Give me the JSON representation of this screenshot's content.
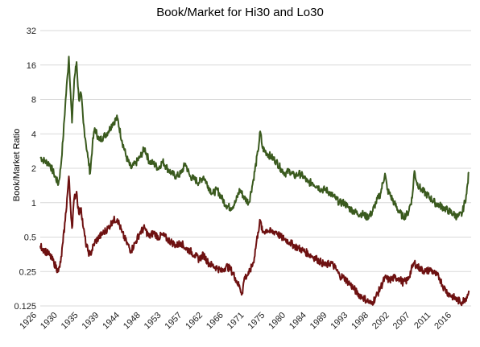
{
  "chart_data": {
    "type": "line",
    "title": "Book/Market for Hi30 and Lo30",
    "xlabel": "",
    "ylabel": "Book/Market Ratio",
    "y_scale": "log2",
    "ylim": [
      0.125,
      32
    ],
    "y_ticks": [
      "32",
      "16",
      "8",
      "4",
      "2",
      "1",
      "0.5",
      "0.25",
      "0.125"
    ],
    "y_tick_values": [
      32,
      16,
      8,
      4,
      2,
      1,
      0.5,
      0.25,
      0.125
    ],
    "x_tick_labels": [
      "1926",
      "1930",
      "1935",
      "1939",
      "1944",
      "1948",
      "1953",
      "1957",
      "1962",
      "1966",
      "1971",
      "1975",
      "1980",
      "1984",
      "1989",
      "1993",
      "1998",
      "2002",
      "2007",
      "2011",
      "2016"
    ],
    "xlim": [
      1926,
      2021
    ],
    "grid": "horizontal",
    "series": [
      {
        "color": "#3a5a1e",
        "points": [
          [
            1926,
            2.5
          ],
          [
            1927,
            2.3
          ],
          [
            1928,
            2.2
          ],
          [
            1929,
            1.8
          ],
          [
            1930,
            1.45
          ],
          [
            1930.5,
            2.0
          ],
          [
            1931,
            3.5
          ],
          [
            1931.5,
            7.0
          ],
          [
            1932,
            13.0
          ],
          [
            1932.3,
            19.0
          ],
          [
            1932.7,
            9.0
          ],
          [
            1933,
            5.0
          ],
          [
            1933.5,
            12.0
          ],
          [
            1934,
            17.0
          ],
          [
            1934.5,
            8.0
          ],
          [
            1935,
            9.0
          ],
          [
            1935.5,
            5.0
          ],
          [
            1936,
            3.5
          ],
          [
            1936.5,
            2.5
          ],
          [
            1937,
            1.8
          ],
          [
            1937.5,
            3.2
          ],
          [
            1938,
            4.5
          ],
          [
            1939,
            3.5
          ],
          [
            1940,
            3.8
          ],
          [
            1941,
            4.2
          ],
          [
            1942,
            5.0
          ],
          [
            1943,
            5.5
          ],
          [
            1944,
            3.5
          ],
          [
            1945,
            2.5
          ],
          [
            1946,
            2.0
          ],
          [
            1947,
            2.2
          ],
          [
            1948,
            2.5
          ],
          [
            1949,
            3.0
          ],
          [
            1950,
            2.3
          ],
          [
            1951,
            2.2
          ],
          [
            1952,
            2.0
          ],
          [
            1953,
            2.3
          ],
          [
            1954,
            2.0
          ],
          [
            1955,
            1.8
          ],
          [
            1956,
            1.7
          ],
          [
            1957,
            1.8
          ],
          [
            1958,
            2.2
          ],
          [
            1959,
            1.7
          ],
          [
            1960,
            1.6
          ],
          [
            1961,
            1.5
          ],
          [
            1962,
            1.7
          ],
          [
            1963,
            1.4
          ],
          [
            1964,
            1.2
          ],
          [
            1965,
            1.3
          ],
          [
            1966,
            1.1
          ],
          [
            1967,
            0.95
          ],
          [
            1968,
            0.9
          ],
          [
            1969,
            1.0
          ],
          [
            1970,
            1.3
          ],
          [
            1971,
            1.1
          ],
          [
            1972,
            1.0
          ],
          [
            1973,
            1.6
          ],
          [
            1974,
            2.8
          ],
          [
            1974.5,
            4.2
          ],
          [
            1975,
            3.0
          ],
          [
            1976,
            2.7
          ],
          [
            1977,
            2.5
          ],
          [
            1978,
            2.3
          ],
          [
            1979,
            2.0
          ],
          [
            1980,
            1.8
          ],
          [
            1981,
            1.9
          ],
          [
            1982,
            1.7
          ],
          [
            1983,
            1.8
          ],
          [
            1984,
            1.7
          ],
          [
            1985,
            1.5
          ],
          [
            1986,
            1.5
          ],
          [
            1987,
            1.4
          ],
          [
            1988,
            1.3
          ],
          [
            1989,
            1.3
          ],
          [
            1990,
            1.2
          ],
          [
            1991,
            1.1
          ],
          [
            1992,
            1.0
          ],
          [
            1993,
            1.0
          ],
          [
            1994,
            0.9
          ],
          [
            1995,
            0.85
          ],
          [
            1996,
            0.8
          ],
          [
            1997,
            0.8
          ],
          [
            1998,
            0.75
          ],
          [
            1999,
            0.8
          ],
          [
            2000,
            1.0
          ],
          [
            2001,
            1.2
          ],
          [
            2002,
            1.8
          ],
          [
            2002.5,
            1.3
          ],
          [
            2003,
            1.2
          ],
          [
            2004,
            1.0
          ],
          [
            2005,
            0.85
          ],
          [
            2006,
            0.75
          ],
          [
            2007,
            0.8
          ],
          [
            2008,
            1.1
          ],
          [
            2008.5,
            1.9
          ],
          [
            2009,
            1.5
          ],
          [
            2010,
            1.3
          ],
          [
            2011,
            1.2
          ],
          [
            2012,
            1.1
          ],
          [
            2013,
            1.0
          ],
          [
            2014,
            0.95
          ],
          [
            2015,
            0.9
          ],
          [
            2016,
            0.85
          ],
          [
            2017,
            0.8
          ],
          [
            2018,
            0.75
          ],
          [
            2019,
            0.8
          ],
          [
            2020,
            1.2
          ],
          [
            2020.5,
            1.85
          ]
        ]
      },
      {
        "color": "#6e1111",
        "points": [
          [
            1926,
            0.42
          ],
          [
            1927,
            0.38
          ],
          [
            1928,
            0.35
          ],
          [
            1929,
            0.3
          ],
          [
            1930,
            0.25
          ],
          [
            1930.5,
            0.3
          ],
          [
            1931,
            0.45
          ],
          [
            1931.5,
            0.7
          ],
          [
            1932,
            1.2
          ],
          [
            1932.3,
            1.7
          ],
          [
            1932.7,
            0.9
          ],
          [
            1933,
            0.6
          ],
          [
            1933.5,
            1.1
          ],
          [
            1934,
            1.25
          ],
          [
            1934.5,
            0.8
          ],
          [
            1935,
            0.9
          ],
          [
            1935.5,
            0.6
          ],
          [
            1936,
            0.45
          ],
          [
            1936.5,
            0.38
          ],
          [
            1937,
            0.35
          ],
          [
            1938,
            0.45
          ],
          [
            1939,
            0.5
          ],
          [
            1940,
            0.55
          ],
          [
            1941,
            0.6
          ],
          [
            1942,
            0.7
          ],
          [
            1943,
            0.72
          ],
          [
            1944,
            0.55
          ],
          [
            1945,
            0.45
          ],
          [
            1946,
            0.38
          ],
          [
            1947,
            0.45
          ],
          [
            1948,
            0.55
          ],
          [
            1949,
            0.6
          ],
          [
            1950,
            0.5
          ],
          [
            1951,
            0.55
          ],
          [
            1952,
            0.5
          ],
          [
            1953,
            0.52
          ],
          [
            1954,
            0.48
          ],
          [
            1955,
            0.45
          ],
          [
            1956,
            0.42
          ],
          [
            1957,
            0.45
          ],
          [
            1958,
            0.4
          ],
          [
            1959,
            0.38
          ],
          [
            1960,
            0.35
          ],
          [
            1961,
            0.32
          ],
          [
            1962,
            0.35
          ],
          [
            1963,
            0.3
          ],
          [
            1964,
            0.28
          ],
          [
            1965,
            0.27
          ],
          [
            1966,
            0.25
          ],
          [
            1967,
            0.28
          ],
          [
            1968,
            0.26
          ],
          [
            1969,
            0.22
          ],
          [
            1970,
            0.18
          ],
          [
            1970.5,
            0.16
          ],
          [
            1971,
            0.22
          ],
          [
            1972,
            0.24
          ],
          [
            1973,
            0.3
          ],
          [
            1974,
            0.55
          ],
          [
            1974.5,
            0.7
          ],
          [
            1975,
            0.55
          ],
          [
            1976,
            0.58
          ],
          [
            1977,
            0.55
          ],
          [
            1978,
            0.56
          ],
          [
            1979,
            0.5
          ],
          [
            1980,
            0.48
          ],
          [
            1981,
            0.45
          ],
          [
            1982,
            0.42
          ],
          [
            1983,
            0.4
          ],
          [
            1984,
            0.38
          ],
          [
            1985,
            0.36
          ],
          [
            1986,
            0.34
          ],
          [
            1987,
            0.32
          ],
          [
            1988,
            0.3
          ],
          [
            1989,
            0.28
          ],
          [
            1990,
            0.3
          ],
          [
            1991,
            0.27
          ],
          [
            1992,
            0.23
          ],
          [
            1993,
            0.22
          ],
          [
            1994,
            0.2
          ],
          [
            1995,
            0.18
          ],
          [
            1996,
            0.16
          ],
          [
            1997,
            0.15
          ],
          [
            1998,
            0.14
          ],
          [
            1999,
            0.13
          ],
          [
            2000,
            0.15
          ],
          [
            2001,
            0.18
          ],
          [
            2002,
            0.22
          ],
          [
            2003,
            0.21
          ],
          [
            2004,
            0.22
          ],
          [
            2005,
            0.22
          ],
          [
            2006,
            0.2
          ],
          [
            2007,
            0.21
          ],
          [
            2008,
            0.27
          ],
          [
            2008.5,
            0.3
          ],
          [
            2009,
            0.28
          ],
          [
            2010,
            0.26
          ],
          [
            2011,
            0.25
          ],
          [
            2012,
            0.26
          ],
          [
            2013,
            0.24
          ],
          [
            2014,
            0.22
          ],
          [
            2015,
            0.18
          ],
          [
            2016,
            0.16
          ],
          [
            2017,
            0.15
          ],
          [
            2018,
            0.14
          ],
          [
            2019,
            0.135
          ],
          [
            2020,
            0.15
          ],
          [
            2020.5,
            0.17
          ]
        ]
      }
    ]
  }
}
